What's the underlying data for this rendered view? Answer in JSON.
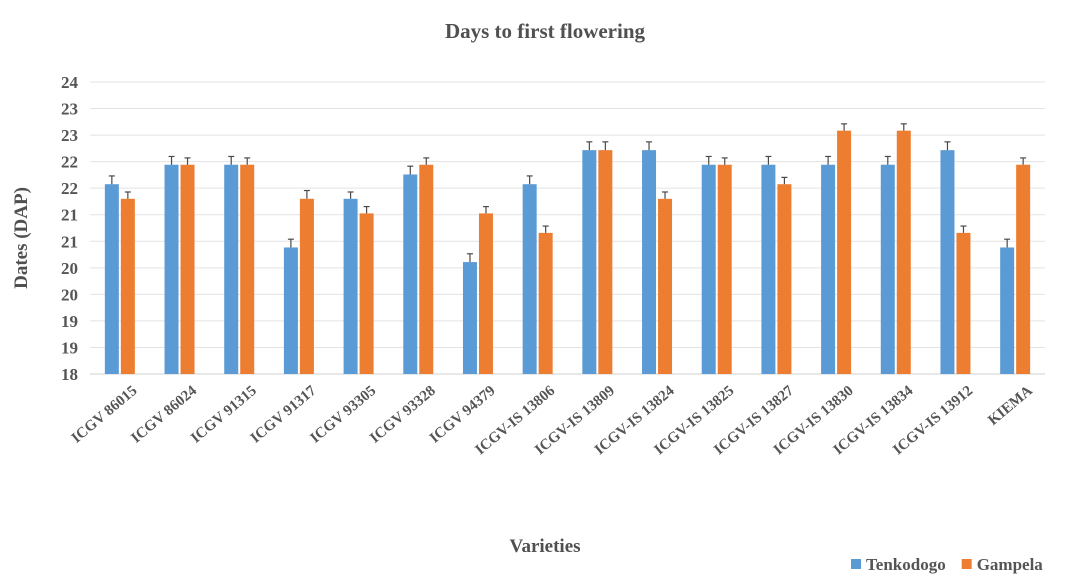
{
  "chart_data": {
    "type": "bar",
    "title": "Days to first flowering",
    "xlabel": "Varieties",
    "ylabel": "Dates (DAP)",
    "ylim": [
      18,
      24
    ],
    "y_ticks": [
      "18",
      "19",
      "19",
      "20",
      "20",
      "21",
      "21",
      "22",
      "22",
      "23",
      "23",
      "24"
    ],
    "grid": true,
    "legend_position": "bottom-right",
    "categories": [
      "ICGV 86015",
      "ICGV 86024",
      "ICGV 91315",
      "ICGV 91317",
      "ICGV 93305",
      "ICGV 93328",
      "ICGV 94379",
      "ICGV-IS 13806",
      "ICGV-IS 13809",
      "ICGV-IS 13824",
      "ICGV-IS 13825",
      "ICGV-IS 13827",
      "ICGV-IS 13830",
      "ICGV-IS 13834",
      "ICGV-IS 13912",
      "KIEMA"
    ],
    "series": [
      {
        "name": "Tenkodogo",
        "color": "#5b9bd5",
        "values": [
          21.9,
          22.3,
          22.3,
          20.6,
          21.6,
          22.1,
          20.3,
          21.9,
          22.6,
          22.6,
          22.3,
          22.3,
          22.3,
          22.3,
          22.6,
          20.6
        ],
        "error": [
          0.17,
          0.17,
          0.17,
          0.17,
          0.14,
          0.17,
          0.17,
          0.17,
          0.17,
          0.17,
          0.17,
          0.17,
          0.17,
          0.17,
          0.17,
          0.17
        ]
      },
      {
        "name": "Gampela",
        "color": "#ed7d31",
        "values": [
          21.6,
          22.3,
          22.3,
          21.6,
          21.3,
          22.3,
          21.3,
          20.9,
          22.6,
          21.6,
          22.3,
          21.9,
          23.0,
          23.0,
          20.9,
          22.3
        ],
        "error": [
          0.14,
          0.14,
          0.14,
          0.17,
          0.14,
          0.14,
          0.14,
          0.14,
          0.17,
          0.14,
          0.14,
          0.14,
          0.14,
          0.14,
          0.14,
          0.14
        ]
      }
    ]
  }
}
